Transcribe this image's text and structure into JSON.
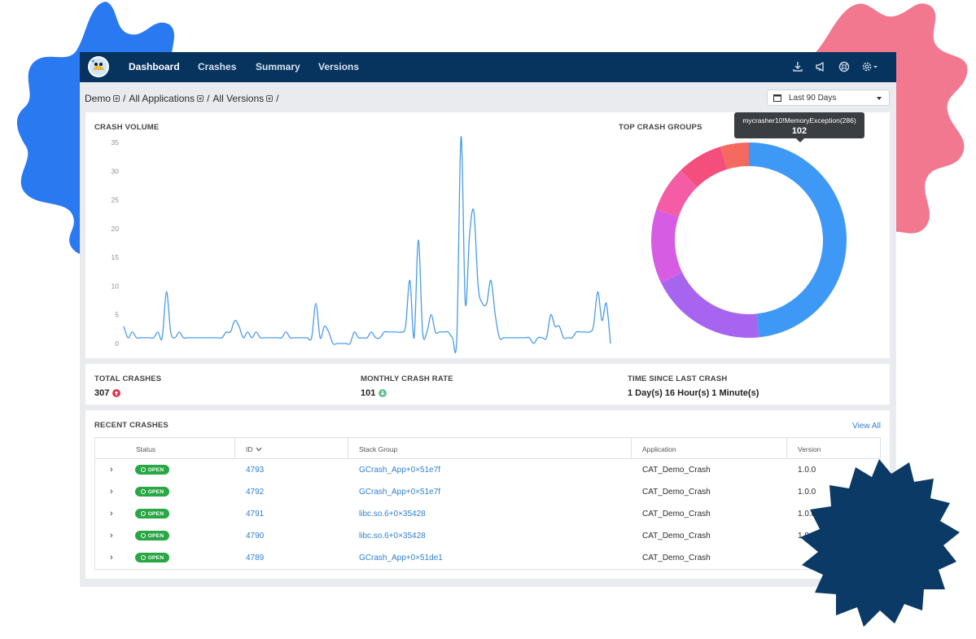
{
  "colors": {
    "nav_bg": "#06345f",
    "accent": "#2f7fd1",
    "open_badge": "#28a745",
    "up_arrow": "#e0314b",
    "down_arrow": "#5cc08a",
    "line": "#4a9be8"
  },
  "nav": {
    "items": [
      "Dashboard",
      "Crashes",
      "Summary",
      "Versions"
    ],
    "active": "Dashboard",
    "icons": [
      "download-icon",
      "megaphone-icon",
      "support-icon",
      "settings-icon"
    ]
  },
  "breadcrumb": [
    "Demo",
    "All Applications",
    "All Versions"
  ],
  "date_range": {
    "label": "Last 90 Days"
  },
  "crash_volume": {
    "title": "CRASH VOLUME"
  },
  "top_crash_groups": {
    "title": "TOP CRASH GROUPS",
    "tooltip_label": "mycrasher10!MemoryException(286)",
    "tooltip_value": "102"
  },
  "chart_data": [
    {
      "type": "line",
      "title": "CRASH VOLUME",
      "yticks": [
        0,
        5,
        10,
        15,
        20,
        25,
        30,
        35
      ],
      "ylim": [
        0,
        35
      ],
      "grid": false,
      "values": [
        3,
        1,
        2,
        1,
        1,
        1,
        1,
        1,
        2,
        1,
        9,
        2,
        1,
        2,
        1,
        1,
        1,
        1,
        1,
        1,
        1,
        1,
        1,
        1,
        2,
        2,
        4,
        3,
        1,
        2,
        1,
        2,
        1,
        1,
        1,
        1,
        1,
        1,
        2,
        1,
        1,
        1,
        1,
        1,
        1,
        7,
        1,
        3,
        2,
        0,
        0,
        0,
        0,
        0,
        2,
        1,
        1,
        1,
        2,
        1,
        1,
        2,
        2,
        2,
        2,
        2,
        3,
        11,
        1,
        18,
        2,
        2,
        5,
        2,
        2,
        2,
        2,
        1,
        1,
        36,
        7,
        19,
        23,
        10,
        7,
        7,
        11,
        5,
        1,
        1,
        1,
        1,
        1,
        1,
        1,
        1,
        0,
        1,
        1,
        1,
        5,
        3,
        3,
        1,
        1,
        1,
        2,
        2,
        2,
        2,
        3,
        9,
        4,
        7,
        0
      ]
    },
    {
      "type": "pie",
      "title": "TOP CRASH GROUPS",
      "donut": true,
      "values": [
        102,
        41,
        26,
        16,
        16,
        10
      ],
      "colors": [
        "#3d99f5",
        "#a764ef",
        "#d75ce4",
        "#f45da6",
        "#f34e7c",
        "#f56a5f"
      ]
    }
  ],
  "stats": {
    "total_crashes_label": "TOTAL CRASHES",
    "total_crashes_value": "307",
    "monthly_rate_label": "MONTHLY CRASH RATE",
    "monthly_rate_value": "101",
    "time_since_label": "TIME SINCE LAST CRASH",
    "time_since_value": "1 Day(s) 16 Hour(s) 1 Minute(s)"
  },
  "recent_crashes": {
    "title": "RECENT CRASHES",
    "view_all": "View All",
    "columns": [
      "Status",
      "ID",
      "Stack Group",
      "Application",
      "Version"
    ],
    "rows": [
      {
        "status": "OPEN",
        "id": "4793",
        "stack_group": "GCrash_App+0×51e7f",
        "application": "CAT_Demo_Crash",
        "version": "1.0.0"
      },
      {
        "status": "OPEN",
        "id": "4792",
        "stack_group": "GCrash_App+0×51e7f",
        "application": "CAT_Demo_Crash",
        "version": "1.0.0"
      },
      {
        "status": "OPEN",
        "id": "4791",
        "stack_group": "libc.so.6+0×35428",
        "application": "CAT_Demo_Crash",
        "version": "1.0.0"
      },
      {
        "status": "OPEN",
        "id": "4790",
        "stack_group": "libc.so.6+0×35428",
        "application": "CAT_Demo_Crash",
        "version": "1.0.0"
      },
      {
        "status": "OPEN",
        "id": "4789",
        "stack_group": "GCrash_App+0×51de1",
        "application": "CAT_Demo_Crash",
        "version": ""
      }
    ]
  }
}
